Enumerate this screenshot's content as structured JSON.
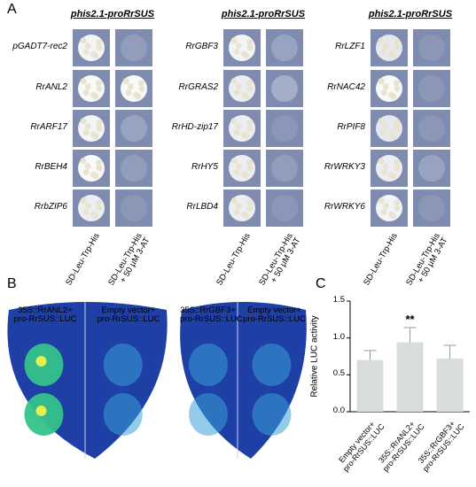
{
  "panel_a": {
    "label": "A",
    "groups": [
      {
        "title": "phis2.1-proRrSUS",
        "rows": [
          "pGADT7-rec2",
          "RrANL2",
          "RrARF17",
          "RrBEH4",
          "RrbZIP6"
        ],
        "columns": [
          "SD-Leu-Trp-His",
          "SD-Leu-Trp-His\n+ 50 μM 3-AT"
        ]
      },
      {
        "title": "phis2.1-proRrSUS",
        "rows": [
          "RrGBF3",
          "RrGRAS2",
          "RrHD-zip17",
          "RrHY5",
          "RrLBD4"
        ],
        "columns": [
          "SD-Leu-Trp-His",
          "SD-Leu-Trp-His\n+ 50 μM 3-AT"
        ]
      },
      {
        "title": "phis2.1-proRrSUS",
        "rows": [
          "RrLZF1",
          "RrNAC42",
          "RrPIF8",
          "RrWRKY3",
          "RrWRKY6"
        ],
        "columns": [
          "SD-Leu-Trp-His",
          "SD-Leu-Trp-His\n+ 50 μM 3-AT"
        ]
      }
    ]
  },
  "panel_b": {
    "label": "B",
    "leaves": [
      {
        "left": "35S::RrANL2+\npro-RrSUS::LUC",
        "right": "Empty vector+\npro-RrSUS::LUC"
      },
      {
        "left": "35S::RrGBF3+\npro-RrSUS::LUC",
        "right": "Empty vector+\npro-RrSUS::LUC"
      }
    ]
  },
  "panel_c": {
    "label": "C",
    "chart_data": {
      "type": "bar",
      "y_label": "Relative LUC activity",
      "categories": [
        "Empty vector+\npro-RrSUS::LUC",
        "35S::RrANL2+\npro-RrSUS::LUC",
        "35S::RrGBF3+\npro-RrSUS::LUC"
      ],
      "values": [
        0.7,
        0.94,
        0.72
      ],
      "errors": [
        0.13,
        0.2,
        0.18
      ],
      "significance": [
        null,
        "**",
        null
      ],
      "color": "#d9dcdc",
      "ylim": [
        0,
        1.5
      ],
      "yticks": [
        {
          "value": 0,
          "label": "0.0"
        },
        0.5,
        {
          "value": 1,
          "label": "1.0"
        },
        1.5
      ]
    }
  }
}
